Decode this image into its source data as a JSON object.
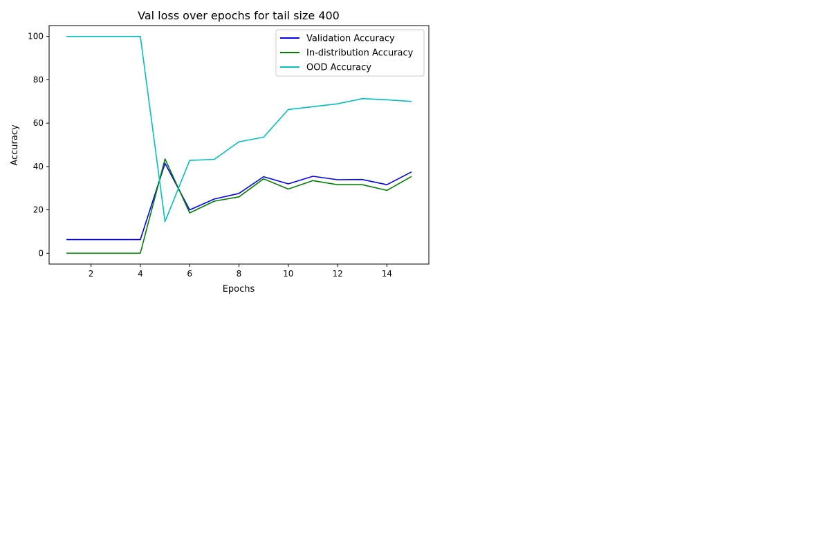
{
  "chart_data": {
    "type": "line",
    "title": "Val loss over epochs for tail size 400",
    "xlabel": "Epochs",
    "ylabel": "Accuracy",
    "xlim": [
      0.3,
      15.7
    ],
    "ylim": [
      -5,
      105
    ],
    "xticks": [
      2,
      4,
      6,
      8,
      10,
      12,
      14
    ],
    "yticks": [
      0,
      20,
      40,
      60,
      80,
      100
    ],
    "grid": false,
    "legend_position": "top-right",
    "x": [
      1,
      2,
      3,
      4,
      5,
      6,
      7,
      8,
      9,
      10,
      11,
      12,
      13,
      14,
      15
    ],
    "series": [
      {
        "name": "Validation Accuracy",
        "color": "#0000ff",
        "values": [
          6.3,
          6.3,
          6.3,
          6.3,
          41.5,
          20.0,
          25.0,
          27.6,
          35.3,
          32.0,
          35.5,
          33.9,
          34.0,
          31.6,
          37.5
        ]
      },
      {
        "name": "In-distribution Accuracy",
        "color": "#008000",
        "values": [
          0,
          0,
          0,
          0,
          43.5,
          18.6,
          24.0,
          26.0,
          34.3,
          29.6,
          33.5,
          31.6,
          31.6,
          29.0,
          35.4
        ]
      },
      {
        "name": "OOD Accuracy",
        "color": "#00bfbf",
        "values": [
          100,
          100,
          100,
          100,
          14.6,
          42.8,
          43.3,
          51.4,
          53.5,
          66.3,
          67.6,
          68.9,
          71.3,
          70.8,
          70.0
        ]
      }
    ]
  }
}
